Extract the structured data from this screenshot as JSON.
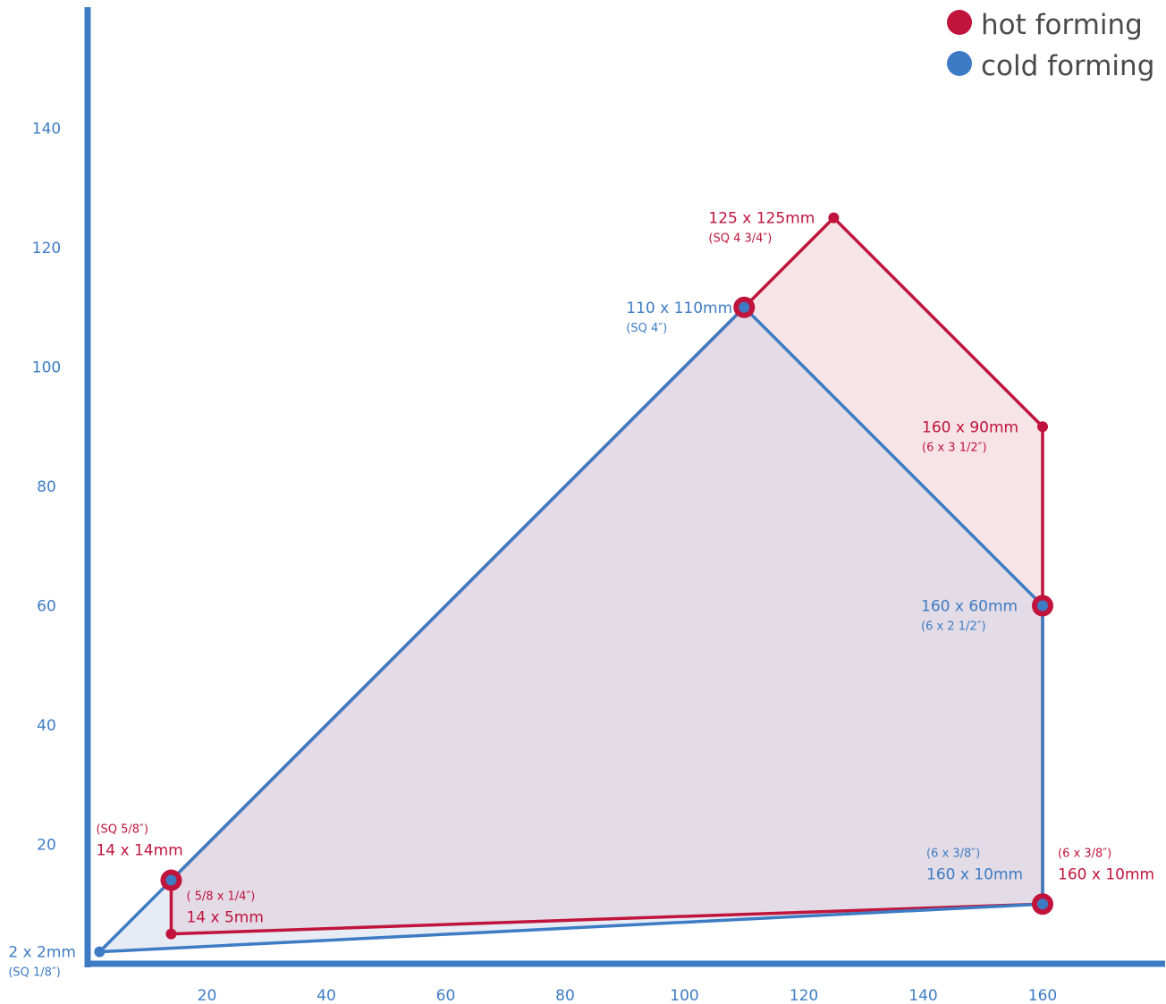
{
  "colors": {
    "hot": "#c0143c",
    "cold": "#3d7cc4",
    "hot_fill": "#f7e4e8",
    "cold_fill": "#e7ebf4",
    "overlap_fill": "#e3dbe5",
    "axis": "#3d7cc4",
    "legend_text": "#4a4a4a"
  },
  "legend": {
    "hot_label": "hot forming",
    "cold_label": "cold forming"
  },
  "chart_data": {
    "type": "area",
    "xlabel": "",
    "ylabel": "",
    "xlim": [
      0,
      180
    ],
    "ylim": [
      0,
      160
    ],
    "xticks": [
      20,
      40,
      60,
      80,
      100,
      120,
      140,
      160
    ],
    "yticks": [
      20,
      40,
      60,
      80,
      100,
      120,
      140
    ],
    "legend_position": "top-right",
    "grid": false,
    "series": [
      {
        "name": "hot forming",
        "polygon": [
          [
            14,
            5
          ],
          [
            14,
            14
          ],
          [
            110,
            110
          ],
          [
            125,
            125
          ],
          [
            160,
            90
          ],
          [
            160,
            60
          ],
          [
            160,
            10
          ]
        ],
        "points": [
          {
            "x": 14,
            "y": 14,
            "label": "14 x 14mm",
            "sub": "(SQ 5/8″)",
            "marker": "large"
          },
          {
            "x": 14,
            "y": 5,
            "label": "14 x 5mm",
            "sub": "( 5/8 x 1/4″)",
            "marker": "small"
          },
          {
            "x": 110,
            "y": 110,
            "label": "",
            "sub": "",
            "marker": "large"
          },
          {
            "x": 125,
            "y": 125,
            "label": "125 x 125mm",
            "sub": "(SQ 4 3/4″)",
            "marker": "small"
          },
          {
            "x": 160,
            "y": 90,
            "label": "160 x 90mm",
            "sub": "(6 x 3 1/2″)",
            "marker": "small"
          },
          {
            "x": 160,
            "y": 60,
            "label": "",
            "sub": "",
            "marker": "large"
          },
          {
            "x": 160,
            "y": 10,
            "label": "160 x 10mm",
            "sub": "(6 x 3/8″)",
            "marker": "large"
          }
        ]
      },
      {
        "name": "cold forming",
        "polygon": [
          [
            2,
            2
          ],
          [
            14,
            14
          ],
          [
            110,
            110
          ],
          [
            160,
            60
          ],
          [
            160,
            10
          ]
        ],
        "points": [
          {
            "x": 2,
            "y": 2,
            "label": "2 x 2mm",
            "sub": "(SQ 1/8″)"
          },
          {
            "x": 14,
            "y": 14,
            "label": "",
            "sub": ""
          },
          {
            "x": 110,
            "y": 110,
            "label": "110 x 110mm",
            "sub": "(SQ 4″)"
          },
          {
            "x": 160,
            "y": 60,
            "label": "160 x 60mm",
            "sub": "(6 x 2 1/2″)"
          },
          {
            "x": 160,
            "y": 10,
            "label": "160 x 10mm",
            "sub": "(6 x 3/8″)"
          }
        ]
      }
    ]
  }
}
